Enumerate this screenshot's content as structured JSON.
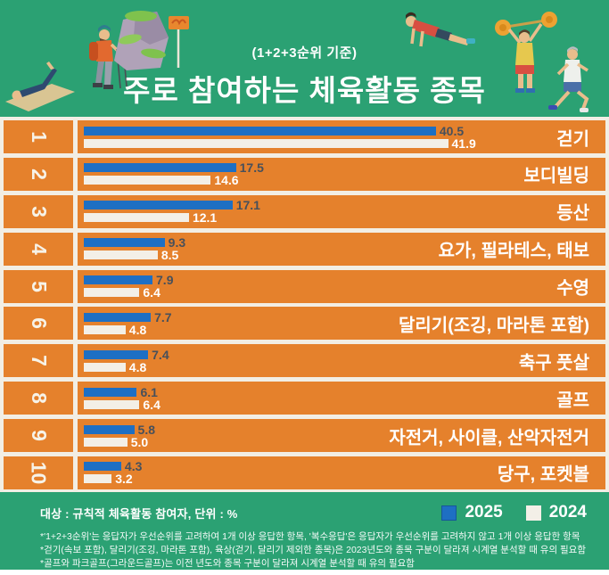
{
  "header": {
    "subtitle": "(1+2+3순위 기준)",
    "title": "주로 참여하는 체육활동 종목",
    "illustrations": [
      "yoga-person",
      "hiker",
      "mountain-rock",
      "trail-sign",
      "pushup-person",
      "weightlifter",
      "runner"
    ]
  },
  "chart_data": {
    "type": "bar",
    "orientation": "horizontal",
    "title": "주로 참여하는 체육활동 종목",
    "subtitle": "(1+2+3순위 기준)",
    "unit": "%",
    "ranks": [
      "1",
      "2",
      "3",
      "4",
      "5",
      "6",
      "7",
      "8",
      "9",
      "10"
    ],
    "categories": [
      "걷기",
      "보디빌딩",
      "등산",
      "요가, 필라테스, 태보",
      "수영",
      "달리기(조깅, 마라톤 포함)",
      "축구 풋살",
      "골프",
      "자전거, 사이클, 산악자전거",
      "당구, 포켓볼"
    ],
    "series": [
      {
        "name": "2025",
        "values": [
          40.5,
          17.5,
          17.1,
          9.3,
          7.9,
          7.7,
          7.4,
          6.1,
          5.8,
          4.3
        ]
      },
      {
        "name": "2024",
        "values": [
          41.9,
          14.6,
          12.1,
          8.5,
          6.4,
          4.8,
          4.8,
          6.4,
          5.0,
          3.2
        ]
      }
    ],
    "xlim": [
      0,
      43
    ],
    "grid": false,
    "legend_position": "bottom-right"
  },
  "footer": {
    "source": "대상 : 규칙적 체육활동 참여자, 단위 : %",
    "legend": [
      {
        "label": "2025",
        "color": "#1e6fc3"
      },
      {
        "label": "2024",
        "color": "#f3efe7"
      }
    ]
  },
  "footnotes": [
    "*'1+2+3순위'는 응답자가 우선순위를 고려하여 1개 이상 응답한 항목, '복수응답'은 응답자가 우선순위를 고려하지 않고 1개 이상 응답한 항목",
    "*걷기(속보 포함), 달리기(조깅, 마라톤 포함), 육상(걷기, 달리기 제외한 종목)은 2023년도와 종목 구분이 달라져 시계열 분석할 때 유의 필요함",
    "*골프와 파크골프(그라운드골프)는 이전 년도와 종목 구분이 달라져 시계열 분석할 때 유의 필요함"
  ],
  "colors": {
    "background_green": "#2ba173",
    "row_orange": "#e5812c",
    "bar_2025": "#1e6fc3",
    "bar_2024": "#f3efe7",
    "value_2025_text": "#47505b",
    "value_2024_text": "#ffffff",
    "chart_background": "#f2eee4"
  }
}
